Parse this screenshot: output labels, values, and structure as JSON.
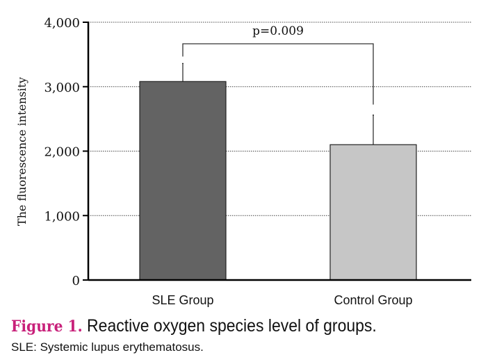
{
  "chart_data": {
    "type": "bar",
    "categories": [
      "SLE Group",
      "Control Group"
    ],
    "values": [
      3080,
      2100
    ],
    "error": [
      280,
      460
    ],
    "colors": [
      "#636363",
      "#c6c6c6"
    ],
    "ylabel": "The fluorescence intensity",
    "xlabel": "",
    "ylim": [
      0,
      4000
    ],
    "yticks": [
      0,
      1000,
      2000,
      3000,
      4000
    ],
    "ytick_labels": [
      "0",
      "1,000",
      "2,000",
      "3,000",
      "4,000"
    ],
    "grid": true,
    "annotation": "p=0.009"
  },
  "caption": {
    "figure_label": "Figure 1.",
    "text": " Reactive oxygen species level of groups.",
    "note": "SLE: Systemic lupus erythematosus."
  }
}
